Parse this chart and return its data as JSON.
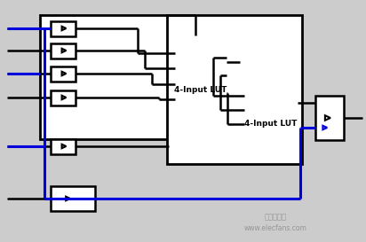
{
  "bg_color": "#cccccc",
  "line_color": "#000000",
  "blue_color": "#0000dd",
  "lut_label1": "4-Input LUT",
  "lut_label2": "4-Input LUT",
  "watermark1": "电子发烧友",
  "watermark2": "www.elecfans.com",
  "fig_w": 4.12,
  "fig_h": 2.73,
  "dpi": 100
}
